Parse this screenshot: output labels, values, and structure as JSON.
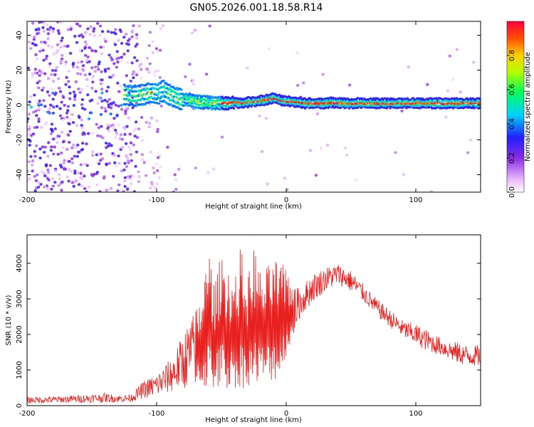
{
  "figure": {
    "title": "GN05.2026.001.18.58.R14"
  },
  "chart_data": [
    {
      "type": "heatmap",
      "xlabel": "Height of straight line (km)",
      "ylabel": "Frequency (Hz)",
      "xlim": [
        -200,
        150
      ],
      "ylim": [
        -50,
        48
      ],
      "xticks": [
        -200,
        -100,
        0,
        100
      ],
      "yticks": [
        -40,
        -20,
        0,
        20,
        40
      ],
      "colorbar": {
        "label": "Normalized spectral amplitude",
        "range": [
          0,
          1
        ],
        "ticks": [
          0.0,
          0.2,
          0.4,
          0.6,
          0.8
        ]
      },
      "ridge": {
        "x": [
          -125,
          -115,
          -105,
          -100,
          -95,
          -90,
          -85,
          -80,
          -75,
          -70,
          -65,
          -60,
          -55,
          -50,
          -45,
          -40,
          -35,
          -30,
          -25,
          -20,
          -15,
          -10,
          -5,
          0,
          5,
          10,
          15,
          20,
          25,
          30,
          35,
          40,
          45,
          50,
          55,
          60,
          65,
          70,
          75,
          80,
          85,
          90,
          95,
          100,
          105,
          110,
          115,
          120,
          125,
          130,
          135,
          140,
          145,
          150
        ],
        "frequency": [
          6,
          5,
          7,
          6,
          8,
          6,
          4,
          3,
          3,
          2,
          1.5,
          1.5,
          1,
          1,
          1,
          1.5,
          1,
          1.5,
          2,
          2.5,
          3,
          4,
          3,
          2,
          2,
          1.5,
          1,
          1,
          1,
          1,
          1.5,
          1,
          1,
          1,
          1,
          1,
          1,
          1,
          1,
          1,
          1,
          1,
          1,
          1,
          1,
          1,
          1,
          1,
          1,
          1,
          1,
          1,
          1,
          1
        ]
      }
    },
    {
      "type": "line",
      "xlabel": "Height of straight line (km)",
      "ylabel": "SNR (10 * v/v)",
      "xlim": [
        -200,
        150
      ],
      "ylim": [
        0,
        4800
      ],
      "xticks": [
        -200,
        -100,
        0,
        100
      ],
      "yticks": [
        0,
        1000,
        2000,
        3000,
        4000
      ],
      "series": [
        {
          "color": "#e8201e",
          "envelope": {
            "x": [
              -200,
              -180,
              -160,
              -140,
              -130,
              -120,
              -115,
              -110,
              -100,
              -95,
              -90,
              -85,
              -80,
              -75,
              -70,
              -65,
              -60,
              -55,
              -50,
              -45,
              -40,
              -35,
              -30,
              -25,
              -20,
              -15,
              -10,
              -5,
              0,
              5,
              10,
              20,
              30,
              40,
              50,
              60,
              70,
              80,
              90,
              100,
              110,
              120,
              130,
              140,
              150
            ],
            "lower": [
              60,
              70,
              80,
              90,
              90,
              100,
              150,
              200,
              250,
              300,
              350,
              400,
              450,
              500,
              500,
              500,
              450,
              400,
              450,
              400,
              500,
              400,
              600,
              500,
              600,
              600,
              700,
              700,
              1400,
              1800,
              2400,
              2900,
              3200,
              3400,
              3200,
              2900,
              2500,
              2200,
              1900,
              1700,
              1500,
              1400,
              1200,
              1100,
              1100
            ],
            "upper": [
              250,
              260,
              300,
              350,
              300,
              320,
              500,
              700,
              900,
              1100,
              1300,
              1600,
              2000,
              2400,
              2700,
              3200,
              4500,
              3400,
              4400,
              4000,
              3600,
              4500,
              3500,
              4600,
              3800,
              3900,
              4200,
              4000,
              3900,
              3500,
              3300,
              3700,
              3900,
              4000,
              3800,
              3400,
              3000,
              2700,
              2400,
              2300,
              2100,
              1900,
              1800,
              1700,
              1700
            ]
          }
        }
      ]
    }
  ]
}
